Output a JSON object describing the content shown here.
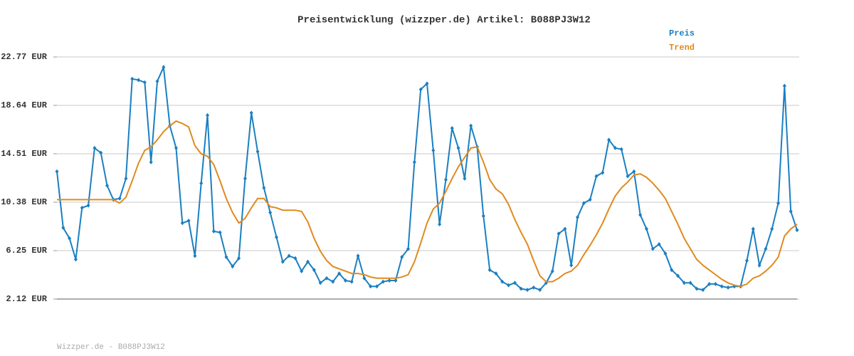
{
  "chart_data": {
    "type": "line",
    "title": "Preisentwicklung (wizzper.de) Artikel: B088PJ3W12",
    "footer": "Wizzper.de - B088PJ3W12",
    "ylim": [
      2.12,
      22.77
    ],
    "yticks": [
      {
        "value": 2.12,
        "label": "2.12 EUR"
      },
      {
        "value": 6.25,
        "label": "6.25 EUR"
      },
      {
        "value": 10.38,
        "label": "10.38 EUR"
      },
      {
        "value": 14.51,
        "label": "14.51 EUR"
      },
      {
        "value": 18.64,
        "label": "18.64 EUR"
      },
      {
        "value": 22.77,
        "label": "22.77 EUR"
      }
    ],
    "grid": true,
    "legend": "top-right",
    "series": [
      {
        "name": "Preis",
        "color": "#1a7fc1",
        "markers": true,
        "values": [
          13.0,
          8.2,
          7.3,
          5.5,
          9.9,
          10.1,
          15.0,
          14.6,
          11.8,
          10.6,
          10.7,
          12.4,
          20.9,
          20.8,
          20.6,
          13.8,
          20.7,
          21.9,
          16.9,
          15.0,
          8.6,
          8.8,
          5.8,
          12.0,
          17.8,
          7.9,
          7.8,
          5.7,
          4.9,
          5.6,
          12.4,
          18.0,
          14.7,
          11.6,
          9.5,
          7.4,
          5.3,
          5.8,
          5.6,
          4.5,
          5.3,
          4.6,
          3.5,
          3.9,
          3.6,
          4.3,
          3.7,
          3.6,
          5.8,
          3.9,
          3.2,
          3.2,
          3.6,
          3.7,
          3.7,
          5.7,
          6.4,
          13.8,
          20.0,
          20.5,
          14.8,
          8.5,
          12.3,
          16.7,
          15.0,
          12.4,
          16.9,
          15.1,
          9.2,
          4.6,
          4.3,
          3.6,
          3.3,
          3.5,
          3.0,
          2.9,
          3.1,
          2.9,
          3.5,
          4.5,
          7.7,
          8.1,
          5.0,
          9.1,
          10.3,
          10.6,
          12.6,
          12.9,
          15.7,
          15.0,
          14.9,
          12.6,
          13.0,
          9.3,
          8.1,
          6.4,
          6.8,
          6.0,
          4.6,
          4.1,
          3.5,
          3.5,
          3.0,
          2.9,
          3.4,
          3.4,
          3.2,
          3.1,
          3.2,
          3.2,
          5.4,
          8.1,
          5.0,
          6.4,
          8.1,
          10.3,
          20.3,
          9.6,
          8.0
        ]
      },
      {
        "name": "Trend",
        "color": "#e08a1e",
        "markers": false,
        "values": [
          10.6,
          10.6,
          10.6,
          10.6,
          10.6,
          10.6,
          10.6,
          10.6,
          10.6,
          10.6,
          10.3,
          10.8,
          12.2,
          13.7,
          14.8,
          15.1,
          15.7,
          16.4,
          16.9,
          17.3,
          17.1,
          16.8,
          15.2,
          14.5,
          14.3,
          13.6,
          12.2,
          10.7,
          9.5,
          8.6,
          9.0,
          9.9,
          10.7,
          10.7,
          10.0,
          9.9,
          9.7,
          9.7,
          9.7,
          9.6,
          8.7,
          7.3,
          6.2,
          5.4,
          4.9,
          4.7,
          4.5,
          4.3,
          4.3,
          4.2,
          4.0,
          3.9,
          3.9,
          3.9,
          3.9,
          4.0,
          4.2,
          5.3,
          6.9,
          8.6,
          9.8,
          10.3,
          11.3,
          12.4,
          13.4,
          14.2,
          15.0,
          15.1,
          13.8,
          12.3,
          11.5,
          11.1,
          10.2,
          8.9,
          7.8,
          6.8,
          5.4,
          4.1,
          3.6,
          3.6,
          3.9,
          4.3,
          4.5,
          5.0,
          5.9,
          6.7,
          7.6,
          8.6,
          9.8,
          10.9,
          11.6,
          12.1,
          12.7,
          12.8,
          12.5,
          12.0,
          11.4,
          10.7,
          9.6,
          8.5,
          7.3,
          6.4,
          5.5,
          5.0,
          4.6,
          4.2,
          3.8,
          3.5,
          3.3,
          3.2,
          3.4,
          3.9,
          4.1,
          4.5,
          5.0,
          5.7,
          7.5,
          8.1,
          8.5
        ]
      }
    ]
  }
}
